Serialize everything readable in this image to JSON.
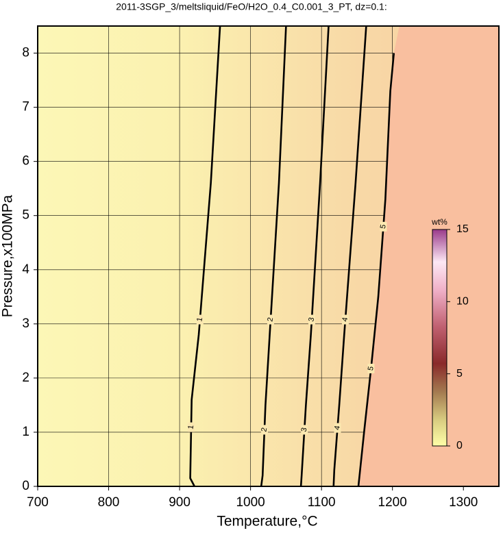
{
  "chart_data": {
    "type": "contour",
    "title": "2011-3SGP_3/meltsliquid/FeO/H2O_0.4_C0.001_3_PT, dz=0.1:",
    "x_label": "Temperature,°C",
    "y_label": "Pressure,x100MPa",
    "xlim": [
      700,
      1350
    ],
    "ylim": [
      0,
      8.5
    ],
    "xticks": [
      700,
      800,
      900,
      1000,
      1100,
      1200,
      1300
    ],
    "yticks": [
      0,
      1,
      2,
      3,
      4,
      5,
      6,
      7,
      8
    ],
    "grid": true,
    "contours": [
      {
        "level": 1,
        "x": [
          921,
          915,
          917,
          927,
          944,
          957
        ],
        "y": [
          0,
          0.15,
          1.6,
          2.8,
          5.6,
          8.5
        ]
      },
      {
        "level": 2,
        "x": [
          1015,
          1017,
          1021,
          1027,
          1040,
          1050
        ],
        "y": [
          0,
          0.2,
          1.5,
          2.8,
          5.6,
          8.5
        ]
      },
      {
        "level": 3,
        "x": [
          1071,
          1072,
          1078,
          1085,
          1098,
          1110
        ],
        "y": [
          0,
          0.2,
          1.5,
          2.8,
          5.6,
          8.5
        ]
      },
      {
        "level": 4,
        "x": [
          1117,
          1118,
          1125,
          1132,
          1148,
          1163
        ],
        "y": [
          0,
          0.3,
          1.5,
          2.8,
          5.6,
          8.5
        ]
      },
      {
        "level": 5,
        "x": [
          1152,
          1160,
          1170,
          1180,
          1190,
          1197,
          1202
        ],
        "y": [
          0,
          1,
          2.2,
          3.5,
          5.3,
          7.3,
          8.0
        ]
      }
    ],
    "colorbar": {
      "label": "wt%",
      "lim": [
        0,
        15
      ],
      "ticks": [
        0,
        5,
        10,
        15
      ]
    }
  }
}
